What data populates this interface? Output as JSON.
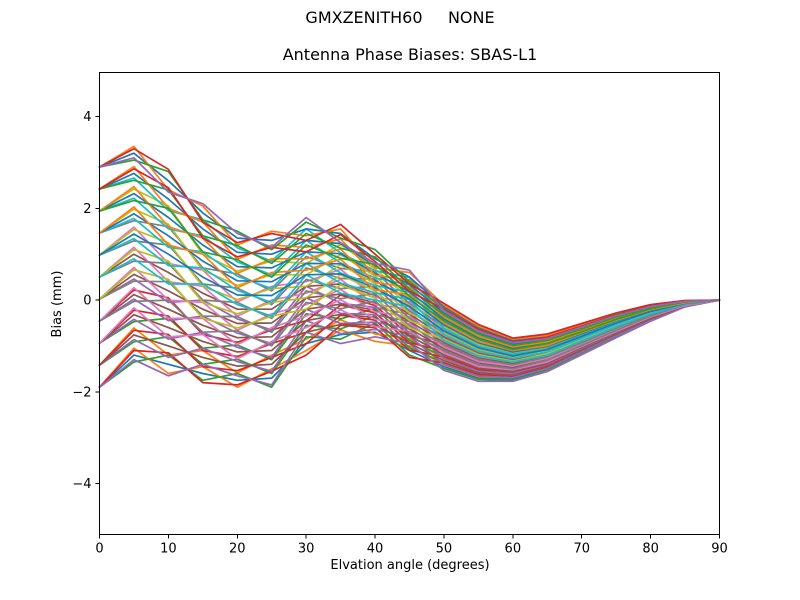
{
  "chart_data": {
    "type": "line",
    "suptitle": "GMXZENITH60     NONE",
    "title": "Antenna Phase Biases: SBAS-L1",
    "xlabel": "Elvation angle (degrees)",
    "ylabel": "Bias (mm)",
    "xlim": [
      0,
      90
    ],
    "ylim": [
      -5.11,
      4.96
    ],
    "xticks": [
      0,
      10,
      20,
      30,
      40,
      50,
      60,
      70,
      80,
      90
    ],
    "yticks": [
      -4,
      -2,
      0,
      2,
      4
    ],
    "grid": false,
    "legend": "none",
    "line_colors": [
      "#1f77b4",
      "#ff7f0e",
      "#2ca02c",
      "#d62728",
      "#9467bd",
      "#8c564b",
      "#e377c2",
      "#7f7f7f",
      "#bcbd22",
      "#17becf"
    ],
    "x": [
      0,
      5,
      10,
      15,
      20,
      25,
      30,
      35,
      40,
      45,
      50,
      55,
      60,
      65,
      70,
      75,
      80,
      85,
      90
    ],
    "series": [
      [
        -1.9,
        -1.2,
        -1.4,
        -1.6,
        -1.75,
        -1.7,
        -0.95,
        -0.75,
        -0.7,
        -1.1,
        -1.45,
        -1.7,
        -1.72,
        -1.51,
        -1.15,
        -0.79,
        -0.44,
        -0.14,
        0
      ],
      [
        -1.42,
        -0.61,
        -1.2,
        -1.1,
        -1.59,
        -1.2,
        -0.85,
        -0.43,
        -0.74,
        -0.84,
        -1.28,
        -1.56,
        -1.61,
        -1.42,
        -1.07,
        -0.73,
        -0.4,
        -0.13,
        0
      ],
      [
        -0.94,
        -0.47,
        -0.4,
        -1.05,
        -0.98,
        -1.3,
        -0.3,
        -0.41,
        -0.18,
        -0.88,
        -1.23,
        -1.51,
        -1.58,
        -1.39,
        -1.05,
        -0.7,
        -0.39,
        -0.12,
        0
      ],
      [
        -0.46,
        0.22,
        0.05,
        -0.75,
        -0.92,
        -0.65,
        -0.45,
        0.11,
        -0.12,
        -0.77,
        -0.98,
        -1.3,
        -1.42,
        -1.24,
        -0.93,
        -0.62,
        -0.32,
        -0.09,
        0
      ],
      [
        0.02,
        0.46,
        -0.05,
        0,
        -0.41,
        -0.65,
        0.3,
        -0.07,
        -0.16,
        -0.31,
        -1.01,
        -1.33,
        -1.43,
        -1.27,
        -0.95,
        -0.63,
        -0.33,
        -0.1,
        0
      ],
      [
        0.5,
        1,
        0.6,
        0.15,
        -0.2,
        -0.2,
        0.3,
        0.35,
        0.1,
        -0.3,
        -0.8,
        -1.15,
        -1.3,
        -1.15,
        -0.85,
        -0.55,
        -0.28,
        -0.08,
        0
      ],
      [
        0.98,
        1.59,
        0.8,
        0.65,
        -0.04,
        0.3,
        0.4,
        0.67,
        0.06,
        -0.04,
        -0.63,
        -1.01,
        -1.19,
        -1.06,
        -0.77,
        -0.49,
        -0.24,
        -0.07,
        0
      ],
      [
        1.46,
        1.73,
        1.6,
        0.7,
        0.57,
        0.2,
        0.95,
        0.69,
        0.62,
        -0.08,
        -0.58,
        -0.96,
        -1.16,
        -1.03,
        -0.75,
        -0.46,
        -0.23,
        -0.06,
        0
      ],
      [
        1.94,
        2.42,
        2.05,
        1,
        0.63,
        0.85,
        0.8,
        1.21,
        0.68,
        0.03,
        -0.33,
        -0.75,
        -1,
        -0.88,
        -0.63,
        -0.38,
        -0.16,
        -0.03,
        0
      ],
      [
        2.42,
        2.66,
        1.95,
        1.75,
        1.14,
        0.85,
        1.55,
        1.03,
        0.64,
        0.49,
        -0.36,
        -0.78,
        -1.01,
        -0.91,
        -0.65,
        -0.39,
        -0.17,
        -0.04,
        0
      ],
      [
        2.9,
        3.2,
        2.6,
        1.9,
        1.35,
        1.3,
        1.55,
        1.45,
        0.9,
        0.5,
        -0.15,
        -0.6,
        -0.88,
        -0.79,
        -0.55,
        -0.31,
        -0.12,
        -0.02,
        0
      ],
      [
        -1.9,
        -1.05,
        -1.6,
        -1.45,
        -1.9,
        -1.5,
        -1.1,
        -0.65,
        -0.9,
        -1,
        -1.41,
        -1.67,
        -1.69,
        -1.49,
        -1.13,
        -0.78,
        -0.43,
        -0.14,
        0
      ],
      [
        -1.42,
        -0.91,
        -0.8,
        -1.4,
        -1.29,
        -1.6,
        -0.55,
        -0.63,
        -0.34,
        -1.04,
        -1.36,
        -1.62,
        -1.67,
        -1.46,
        -1.11,
        -0.75,
        -0.42,
        -0.13,
        0
      ],
      [
        -0.94,
        -0.22,
        -0.35,
        -1.1,
        -1.23,
        -0.95,
        -0.7,
        -0.11,
        -0.28,
        -0.93,
        -1.11,
        -1.41,
        -1.5,
        -1.32,
        -0.99,
        -0.66,
        -0.36,
        -0.11,
        0
      ],
      [
        -0.46,
        0.02,
        -0.45,
        -0.35,
        -0.72,
        -0.95,
        0.05,
        -0.29,
        -0.32,
        -0.47,
        -1.14,
        -1.44,
        -1.52,
        -1.34,
        -1.01,
        -0.68,
        -0.36,
        -0.11,
        0
      ],
      [
        0.02,
        0.56,
        0.2,
        -0.2,
        -0.51,
        -0.5,
        0.05,
        0.13,
        -0.06,
        -0.46,
        -0.93,
        -1.26,
        -1.38,
        -1.22,
        -0.91,
        -0.6,
        -0.31,
        -0.09,
        0
      ],
      [
        0.5,
        1.15,
        0.4,
        0.3,
        -0.35,
        0,
        0.15,
        0.45,
        -0.1,
        -0.2,
        -0.76,
        -1.12,
        -1.27,
        -1.13,
        -0.83,
        -0.54,
        -0.27,
        -0.08,
        0
      ],
      [
        0.98,
        1.29,
        1.2,
        0.35,
        0.26,
        -0.1,
        0.7,
        0.47,
        0.46,
        -0.24,
        -0.71,
        -1.07,
        -1.25,
        -1.1,
        -0.81,
        -0.51,
        -0.26,
        -0.07,
        0
      ],
      [
        1.46,
        1.98,
        1.65,
        0.65,
        0.32,
        0.55,
        0.55,
        0.99,
        0.52,
        -0.13,
        -0.46,
        -0.86,
        -1.08,
        -0.96,
        -0.69,
        -0.42,
        -0.2,
        -0.05,
        0
      ],
      [
        1.94,
        2.22,
        1.55,
        1.4,
        0.83,
        0.55,
        1.3,
        0.81,
        0.48,
        0.33,
        -0.49,
        -0.89,
        -1.1,
        -0.98,
        -0.71,
        -0.44,
        -0.2,
        -0.05,
        0
      ],
      [
        2.42,
        2.76,
        2.2,
        1.55,
        1.04,
        1,
        1.3,
        1.23,
        0.74,
        0.34,
        -0.28,
        -0.71,
        -0.96,
        -0.86,
        -0.61,
        -0.36,
        -0.15,
        -0.03,
        0
      ],
      [
        2.9,
        3.35,
        2.4,
        2.05,
        1.2,
        1.5,
        1.4,
        1.55,
        0.7,
        0.6,
        -0.11,
        -0.57,
        -0.85,
        -0.77,
        -0.53,
        -0.3,
        -0.11,
        -0.02,
        0
      ],
      [
        -1.9,
        -1.35,
        -1.2,
        -1.75,
        -1.6,
        -1.9,
        -0.8,
        -0.85,
        -0.5,
        -1.2,
        -1.49,
        -1.73,
        -1.75,
        -1.53,
        -1.17,
        -0.8,
        -0.45,
        -0.14,
        0
      ],
      [
        -1.42,
        -0.66,
        -0.75,
        -1.45,
        -1.54,
        -1.25,
        -0.95,
        -0.33,
        -0.44,
        -1.09,
        -1.24,
        -1.52,
        -1.59,
        -1.39,
        -1.05,
        -0.71,
        -0.39,
        -0.12,
        0
      ],
      [
        -0.94,
        -0.42,
        -0.85,
        -0.7,
        -1.03,
        -1.25,
        -0.2,
        -0.51,
        -0.48,
        -0.63,
        -1.27,
        -1.55,
        -1.6,
        -1.42,
        -1.07,
        -0.72,
        -0.4,
        -0.13,
        0
      ],
      [
        -0.46,
        0.12,
        -0.2,
        -0.55,
        -0.82,
        -0.8,
        -0.2,
        -0.09,
        -0.22,
        -0.62,
        -1.06,
        -1.37,
        -1.47,
        -1.29,
        -0.97,
        -0.65,
        -0.34,
        -0.1,
        0
      ],
      [
        0.02,
        0.71,
        0,
        -0.05,
        -0.66,
        -0.3,
        -0.1,
        0.23,
        -0.26,
        -0.36,
        -0.89,
        -1.23,
        -1.35,
        -1.2,
        -0.89,
        -0.59,
        -0.3,
        -0.09,
        0
      ],
      [
        0.5,
        0.85,
        0.8,
        0,
        -0.05,
        -0.4,
        0.45,
        0.25,
        0.3,
        -0.4,
        -0.84,
        -1.18,
        -1.33,
        -1.17,
        -0.87,
        -0.56,
        -0.29,
        -0.08,
        0
      ],
      [
        0.98,
        1.54,
        1.25,
        0.3,
        0.01,
        0.25,
        0.3,
        0.77,
        0.36,
        -0.29,
        -0.59,
        -0.97,
        -1.17,
        -1.03,
        -0.75,
        -0.47,
        -0.23,
        -0.06,
        0
      ],
      [
        1.46,
        1.78,
        1.15,
        1.05,
        0.52,
        0.25,
        1.05,
        0.59,
        0.32,
        0.17,
        -0.62,
        -1,
        -1.18,
        -1.06,
        -0.77,
        -0.48,
        -0.24,
        -0.07,
        0
      ],
      [
        1.94,
        2.32,
        1.8,
        1.2,
        0.73,
        0.7,
        1.05,
        1.01,
        0.58,
        0.18,
        -0.41,
        -0.82,
        -1.05,
        -0.93,
        -0.67,
        -0.41,
        -0.18,
        -0.04,
        0
      ],
      [
        2.42,
        2.91,
        2,
        1.7,
        0.89,
        1.2,
        1.15,
        1.33,
        0.54,
        0.44,
        -0.24,
        -0.68,
        -0.93,
        -0.84,
        -0.59,
        -0.35,
        -0.14,
        -0.03,
        0
      ],
      [
        2.9,
        3.05,
        2.8,
        1.75,
        1.5,
        1.1,
        1.7,
        1.35,
        1.1,
        0.4,
        -0.19,
        -0.63,
        -0.91,
        -0.81,
        -0.57,
        -0.32,
        -0.13,
        -0.02,
        0
      ],
      [
        -1.9,
        -1.1,
        -1.15,
        -1.8,
        -1.85,
        -1.55,
        -1.2,
        -0.55,
        -0.6,
        -1.25,
        -1.37,
        -1.63,
        -1.67,
        -1.46,
        -1.11,
        -0.76,
        -0.42,
        -0.13,
        0
      ],
      [
        -1.42,
        -0.86,
        -1.25,
        -1.05,
        -1.34,
        -1.55,
        -0.45,
        -0.73,
        -0.64,
        -0.79,
        -1.4,
        -1.66,
        -1.69,
        -1.49,
        -1.13,
        -0.77,
        -0.43,
        -0.14,
        0
      ],
      [
        -0.94,
        -0.32,
        -0.6,
        -0.9,
        -1.13,
        -1.1,
        -0.45,
        -0.31,
        -0.38,
        -0.78,
        -1.19,
        -1.48,
        -1.55,
        -1.37,
        -1.03,
        -0.69,
        -0.38,
        -0.12,
        0
      ],
      [
        -0.46,
        0.27,
        -0.4,
        -0.4,
        -0.97,
        -0.6,
        -0.35,
        0.01,
        -0.42,
        -0.52,
        -1.02,
        -1.34,
        -1.44,
        -1.27,
        -0.95,
        -0.64,
        -0.33,
        -0.1,
        0
      ],
      [
        0.02,
        0.41,
        0.4,
        -0.35,
        -0.36,
        -0.7,
        0.2,
        0.03,
        0.14,
        -0.56,
        -0.97,
        -1.29,
        -1.41,
        -1.24,
        -0.93,
        -0.61,
        -0.32,
        -0.09,
        0
      ],
      [
        0.5,
        1.1,
        0.85,
        -0.05,
        -0.3,
        -0.05,
        0.05,
        0.55,
        0.2,
        -0.45,
        -0.72,
        -1.08,
        -1.25,
        -1.1,
        -0.81,
        -0.52,
        -0.26,
        -0.07,
        0
      ],
      [
        0.98,
        1.34,
        0.75,
        0.7,
        0.21,
        -0.05,
        0.8,
        0.37,
        0.16,
        0.01,
        -0.75,
        -1.11,
        -1.27,
        -1.13,
        -0.83,
        -0.53,
        -0.27,
        -0.08,
        0
      ],
      [
        1.46,
        1.88,
        1.4,
        0.85,
        0.42,
        0.4,
        0.8,
        0.79,
        0.42,
        0.02,
        -0.54,
        -0.93,
        -1.13,
        -1.01,
        -0.73,
        -0.45,
        -0.22,
        -0.06,
        0
      ],
      [
        1.94,
        2.47,
        1.6,
        1.35,
        0.58,
        0.9,
        0.9,
        1.11,
        0.38,
        0.28,
        -0.37,
        -0.79,
        -1.02,
        -0.91,
        -0.65,
        -0.4,
        -0.17,
        -0.04,
        0
      ],
      [
        2.42,
        2.61,
        2.4,
        1.4,
        1.19,
        0.8,
        1.45,
        1.13,
        0.94,
        0.24,
        -0.32,
        -0.74,
        -0.99,
        -0.88,
        -0.63,
        -0.37,
        -0.16,
        -0.03,
        0
      ],
      [
        2.9,
        3.3,
        2.85,
        1.7,
        1.25,
        1.45,
        1.3,
        1.65,
        1,
        0.35,
        -0.07,
        -0.53,
        -0.83,
        -0.74,
        -0.51,
        -0.28,
        -0.1,
        -0.01,
        0
      ],
      [
        -1.9,
        -1.3,
        -1.65,
        -1.4,
        -1.65,
        -1.85,
        -0.7,
        -0.95,
        -0.8,
        -0.95,
        -1.53,
        -1.77,
        -1.77,
        -1.56,
        -1.19,
        -0.82,
        -0.46,
        -0.15,
        0
      ],
      [
        -1.42,
        -0.76,
        -1,
        -1.25,
        -1.44,
        -1.4,
        -0.7,
        -0.53,
        -0.54,
        -0.94,
        -1.32,
        -1.59,
        -1.64,
        -1.44,
        -1.09,
        -0.74,
        -0.41,
        -0.13,
        0
      ],
      [
        -0.94,
        -0.17,
        -0.8,
        -0.75,
        -1.28,
        -0.9,
        -0.6,
        -0.21,
        -0.58,
        -0.68,
        -1.15,
        -1.45,
        -1.52,
        -1.35,
        -1.01,
        -0.68,
        -0.37,
        -0.12,
        0
      ],
      [
        -0.46,
        -0.03,
        0,
        -0.7,
        -0.67,
        -1,
        -0.05,
        -0.19,
        -0.02,
        -0.72,
        -1.1,
        -1.4,
        -1.5,
        -1.31,
        -0.99,
        -0.66,
        -0.35,
        -0.1,
        0
      ],
      [
        0.02,
        0.66,
        0.45,
        -0.4,
        -0.61,
        -0.35,
        -0.2,
        0.33,
        0.04,
        -0.61,
        -0.85,
        -1.19,
        -1.33,
        -1.17,
        -0.87,
        -0.57,
        -0.29,
        -0.08,
        0
      ],
      [
        0.5,
        0.9,
        0.35,
        0.35,
        -0.1,
        -0.35,
        0.55,
        0.15,
        0,
        -0.15,
        -0.88,
        -1.22,
        -1.35,
        -1.2,
        -0.89,
        -0.58,
        -0.3,
        -0.09,
        0
      ],
      [
        0.98,
        1.44,
        1,
        0.5,
        0.11,
        0.1,
        0.55,
        0.57,
        0.26,
        -0.14,
        -0.67,
        -1.04,
        -1.22,
        -1.08,
        -0.79,
        -0.5,
        -0.25,
        -0.07,
        0
      ],
      [
        1.46,
        2.03,
        1.2,
        1,
        0.27,
        0.6,
        0.65,
        0.89,
        0.22,
        0.12,
        -0.5,
        -0.9,
        -1.1,
        -0.99,
        -0.71,
        -0.44,
        -0.21,
        -0.06,
        0
      ],
      [
        1.94,
        2.17,
        2,
        1.05,
        0.88,
        0.5,
        1.2,
        0.91,
        0.78,
        0.08,
        -0.45,
        -0.85,
        -1.08,
        -0.95,
        -0.69,
        -0.42,
        -0.19,
        -0.04,
        0
      ],
      [
        2.42,
        2.86,
        2.45,
        1.35,
        0.94,
        1.15,
        1.05,
        1.43,
        0.84,
        0.19,
        -0.2,
        -0.64,
        -0.91,
        -0.81,
        -0.57,
        -0.33,
        -0.13,
        -0.02,
        0
      ],
      [
        2.9,
        3.1,
        2.35,
        2.1,
        1.45,
        1.15,
        1.8,
        1.25,
        0.8,
        0.65,
        -0.23,
        -0.67,
        -0.93,
        -0.84,
        -0.59,
        -0.34,
        -0.14,
        -0.03,
        0
      ]
    ]
  }
}
